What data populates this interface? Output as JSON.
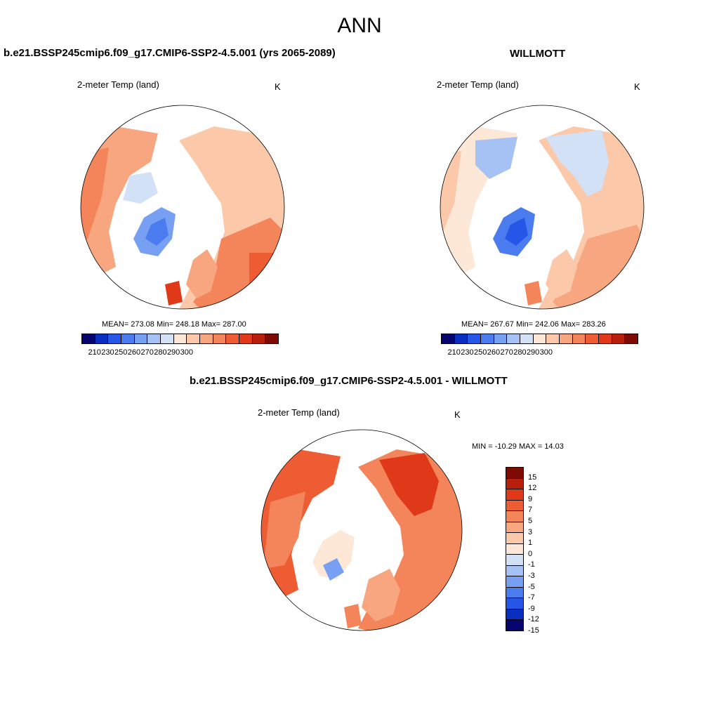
{
  "figure": {
    "title": "ANN"
  },
  "panels": {
    "model": {
      "title": "b.e21.BSSP245cmip6.f09_g17.CMIP6-SSP2-4.5.001 (yrs 2065-2089)",
      "variable": "2-meter Temp (land)",
      "units": "K",
      "stats": "MEAN= 273.08  Min= 248.18  Max= 287.00",
      "colorbar_ticks": [
        "210",
        "230",
        "250",
        "260",
        "270",
        "280",
        "290",
        "300"
      ]
    },
    "obs": {
      "title": "WILLMOTT",
      "variable": "2-meter Temp (land)",
      "units": "K",
      "stats": "MEAN= 267.67  Min= 242.06  Max= 283.26",
      "colorbar_ticks": [
        "210",
        "230",
        "250",
        "260",
        "270",
        "280",
        "290",
        "300"
      ]
    },
    "diff": {
      "title": "b.e21.BSSP245cmip6.f09_g17.CMIP6-SSP2-4.5.001 - WILLMOTT",
      "variable": "2-meter Temp (land)",
      "units": "K",
      "minmax": "MIN = -10.29 MAX =  14.03",
      "colorbar_labels": [
        "15",
        "12",
        "9",
        "7",
        "5",
        "3",
        "1",
        "0",
        "-1",
        "-3",
        "-5",
        "-7",
        "-9",
        "-12",
        "-15"
      ]
    }
  },
  "colors": {
    "sequential": [
      "#06066e",
      "#0a2fc0",
      "#2556e8",
      "#4a7cf0",
      "#779ff2",
      "#a6c2f4",
      "#d3e1f7",
      "#fde7d6",
      "#fbc8a9",
      "#f8a67f",
      "#f4845a",
      "#ee5c33",
      "#e0391a",
      "#b81f0c",
      "#7d0a03"
    ],
    "diverging": [
      "#7d0a03",
      "#b81f0c",
      "#e0391a",
      "#ee5c33",
      "#f4845a",
      "#f8a67f",
      "#fbc8a9",
      "#fde7d6",
      "#d3e1f7",
      "#a6c2f4",
      "#779ff2",
      "#4a7cf0",
      "#2556e8",
      "#0a2fc0",
      "#06066e"
    ]
  }
}
